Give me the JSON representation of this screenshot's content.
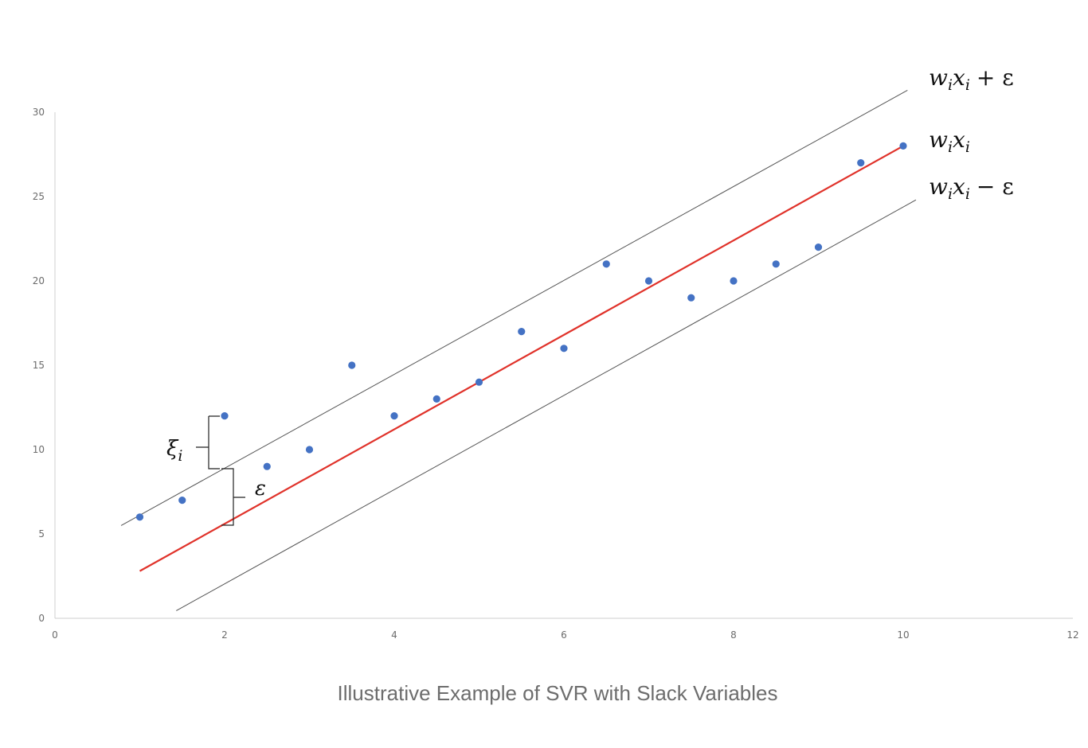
{
  "chart_data": {
    "type": "scatter",
    "title": "",
    "xlabel": "",
    "ylabel": "",
    "xlim": [
      0,
      12
    ],
    "ylim": [
      0,
      30
    ],
    "x_ticks": [
      "0",
      "2",
      "4",
      "6",
      "8",
      "10",
      "12"
    ],
    "y_ticks": [
      "0",
      "5",
      "10",
      "15",
      "20",
      "25",
      "30"
    ],
    "grid": false,
    "legend": "none",
    "series": [
      {
        "color": "#4472c4",
        "points": [
          {
            "x": 1,
            "y": 6
          },
          {
            "x": 1.5,
            "y": 7
          },
          {
            "x": 2,
            "y": 12
          },
          {
            "x": 2.5,
            "y": 9
          },
          {
            "x": 3,
            "y": 10
          },
          {
            "x": 3.5,
            "y": 15
          },
          {
            "x": 4,
            "y": 12
          },
          {
            "x": 4.5,
            "y": 13
          },
          {
            "x": 5,
            "y": 14
          },
          {
            "x": 5.5,
            "y": 17
          },
          {
            "x": 6,
            "y": 16
          },
          {
            "x": 6.5,
            "y": 21
          },
          {
            "x": 7,
            "y": 20
          },
          {
            "x": 7.5,
            "y": 19
          },
          {
            "x": 8,
            "y": 20
          },
          {
            "x": 8.5,
            "y": 21
          },
          {
            "x": 9,
            "y": 22
          },
          {
            "x": 9.5,
            "y": 27
          },
          {
            "x": 10,
            "y": 28
          }
        ]
      }
    ],
    "lines": [
      {
        "label_main": "w",
        "label_sub": "i",
        "label_var": "x",
        "label_sub2": "i",
        "label_op": "+ ε",
        "color": "#555555",
        "from": {
          "x": 0.78,
          "y": 5.5
        },
        "to": {
          "x": 10.05,
          "y": 31.3
        }
      },
      {
        "label_main": "w",
        "label_sub": "i",
        "label_var": "x",
        "label_sub2": "i",
        "label_op": "",
        "color": "#e0322a",
        "from": {
          "x": 1,
          "y": 2.8
        },
        "to": {
          "x": 10,
          "y": 28
        }
      },
      {
        "label_main": "w",
        "label_sub": "i",
        "label_var": "x",
        "label_sub2": "i",
        "label_op": "− ε",
        "color": "#555555",
        "from": {
          "x": 1.43,
          "y": 0.45
        },
        "to": {
          "x": 10.15,
          "y": 24.8
        }
      }
    ],
    "annotations": {
      "xi": {
        "main": "ξ",
        "sub": "i"
      },
      "epsilon": "ε"
    }
  },
  "caption": "Illustrative Example of SVR with Slack Variables"
}
